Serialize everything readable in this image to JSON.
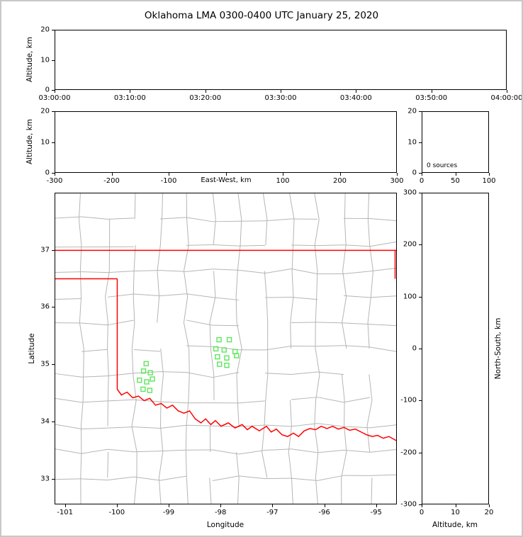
{
  "title": "Oklahoma LMA 0300-0400 UTC January 25, 2020",
  "colors": {
    "background": "#ffffff",
    "frame_border": "#c8c8c8",
    "panel_border": "#000000",
    "county_lines": "#b5b5b5",
    "state_border": "#ff0000",
    "station_marker": "#5ce65c"
  },
  "chart_data": [
    {
      "id": "time_altitude",
      "type": "scatter",
      "points": [],
      "x": {
        "label": "",
        "tick_labels": [
          "03:00:00",
          "03:10:00",
          "03:20:00",
          "03:30:00",
          "03:40:00",
          "03:50:00",
          "04:00:00"
        ]
      },
      "y": {
        "label": "Altitude, km",
        "range": [
          0,
          20
        ],
        "ticks": [
          0,
          10,
          20
        ]
      }
    },
    {
      "id": "eastwest_altitude",
      "type": "scatter",
      "points": [],
      "x": {
        "label": "East-West, km",
        "range": [
          -300,
          300
        ],
        "ticks": [
          -300,
          -200,
          -100,
          0,
          100,
          200,
          300
        ],
        "tick_labels": [
          "-300",
          "-200",
          "-100",
          "",
          "100",
          "200",
          "300"
        ]
      },
      "y": {
        "label": "Altitude, km",
        "range": [
          0,
          20
        ],
        "ticks": [
          0,
          10,
          20
        ]
      }
    },
    {
      "id": "source_histogram",
      "type": "bar",
      "values": [],
      "annotation": "0 sources",
      "x": {
        "label": "",
        "range": [
          0,
          100
        ],
        "ticks": [
          0,
          50,
          100
        ]
      },
      "y": {
        "label": "",
        "range": [
          0,
          20
        ],
        "ticks": [
          0,
          10,
          20
        ]
      }
    },
    {
      "id": "plan_map",
      "type": "map",
      "x": {
        "label": "Longitude",
        "range": [
          -101.2,
          -94.6
        ],
        "ticks": [
          -101,
          -100,
          -99,
          -98,
          -97,
          -96,
          -95
        ]
      },
      "y": {
        "label": "Latitude",
        "range": [
          32.55,
          38.0
        ],
        "ticks": [
          33,
          34,
          35,
          36,
          37
        ]
      },
      "stations": [
        [
          -98.03,
          35.43
        ],
        [
          -97.83,
          35.43
        ],
        [
          -98.09,
          35.27
        ],
        [
          -97.93,
          35.25
        ],
        [
          -97.72,
          35.22
        ],
        [
          -98.06,
          35.13
        ],
        [
          -97.88,
          35.11
        ],
        [
          -97.69,
          35.15
        ],
        [
          -98.02,
          35.0
        ],
        [
          -97.88,
          34.98
        ],
        [
          -99.44,
          35.01
        ],
        [
          -99.49,
          34.88
        ],
        [
          -99.36,
          34.85
        ],
        [
          -99.57,
          34.72
        ],
        [
          -99.43,
          34.69
        ],
        [
          -99.32,
          34.74
        ],
        [
          -99.5,
          34.56
        ],
        [
          -99.37,
          34.54
        ]
      ],
      "state_border": [
        [
          [
            -101.2,
            37.0
          ],
          [
            -94.6,
            37.0
          ]
        ],
        [
          [
            -94.62,
            37.0
          ],
          [
            -94.62,
            36.5
          ]
        ],
        [
          [
            -101.2,
            36.5
          ],
          [
            -100.0,
            36.5
          ]
        ],
        [
          [
            -100.0,
            36.5
          ],
          [
            -100.0,
            34.56
          ]
        ],
        [
          [
            -100.0,
            34.56
          ],
          [
            -99.92,
            34.46
          ],
          [
            -99.81,
            34.51
          ],
          [
            -99.7,
            34.41
          ],
          [
            -99.59,
            34.44
          ],
          [
            -99.48,
            34.36
          ],
          [
            -99.37,
            34.4
          ],
          [
            -99.26,
            34.28
          ],
          [
            -99.15,
            34.31
          ],
          [
            -99.04,
            34.23
          ],
          [
            -98.93,
            34.28
          ],
          [
            -98.82,
            34.18
          ],
          [
            -98.71,
            34.14
          ],
          [
            -98.6,
            34.18
          ],
          [
            -98.49,
            34.04
          ],
          [
            -98.38,
            33.97
          ],
          [
            -98.29,
            34.04
          ],
          [
            -98.19,
            33.94
          ],
          [
            -98.1,
            34.01
          ],
          [
            -97.99,
            33.91
          ],
          [
            -97.85,
            33.97
          ],
          [
            -97.72,
            33.88
          ],
          [
            -97.58,
            33.94
          ],
          [
            -97.48,
            33.85
          ],
          [
            -97.39,
            33.91
          ],
          [
            -97.25,
            33.83
          ],
          [
            -97.11,
            33.91
          ],
          [
            -97.02,
            33.81
          ],
          [
            -96.92,
            33.86
          ],
          [
            -96.81,
            33.76
          ],
          [
            -96.7,
            33.73
          ],
          [
            -96.59,
            33.79
          ],
          [
            -96.49,
            33.73
          ],
          [
            -96.38,
            33.83
          ],
          [
            -96.27,
            33.87
          ],
          [
            -96.16,
            33.85
          ],
          [
            -96.05,
            33.91
          ],
          [
            -95.94,
            33.87
          ],
          [
            -95.83,
            33.91
          ],
          [
            -95.72,
            33.86
          ],
          [
            -95.61,
            33.89
          ],
          [
            -95.5,
            33.84
          ],
          [
            -95.39,
            33.86
          ],
          [
            -95.28,
            33.81
          ],
          [
            -95.17,
            33.76
          ],
          [
            -95.06,
            33.73
          ],
          [
            -94.96,
            33.75
          ],
          [
            -94.85,
            33.7
          ],
          [
            -94.74,
            33.73
          ],
          [
            -94.6,
            33.66
          ]
        ]
      ]
    },
    {
      "id": "northsouth_altitude",
      "type": "scatter",
      "points": [],
      "x": {
        "label": "Altitude, km",
        "range": [
          0,
          20
        ],
        "ticks": [
          0,
          10,
          20
        ]
      },
      "y": {
        "label": "North-South, km",
        "range": [
          -300,
          300
        ],
        "ticks": [
          300,
          200,
          100,
          0,
          -100,
          -200,
          -300
        ]
      }
    }
  ]
}
